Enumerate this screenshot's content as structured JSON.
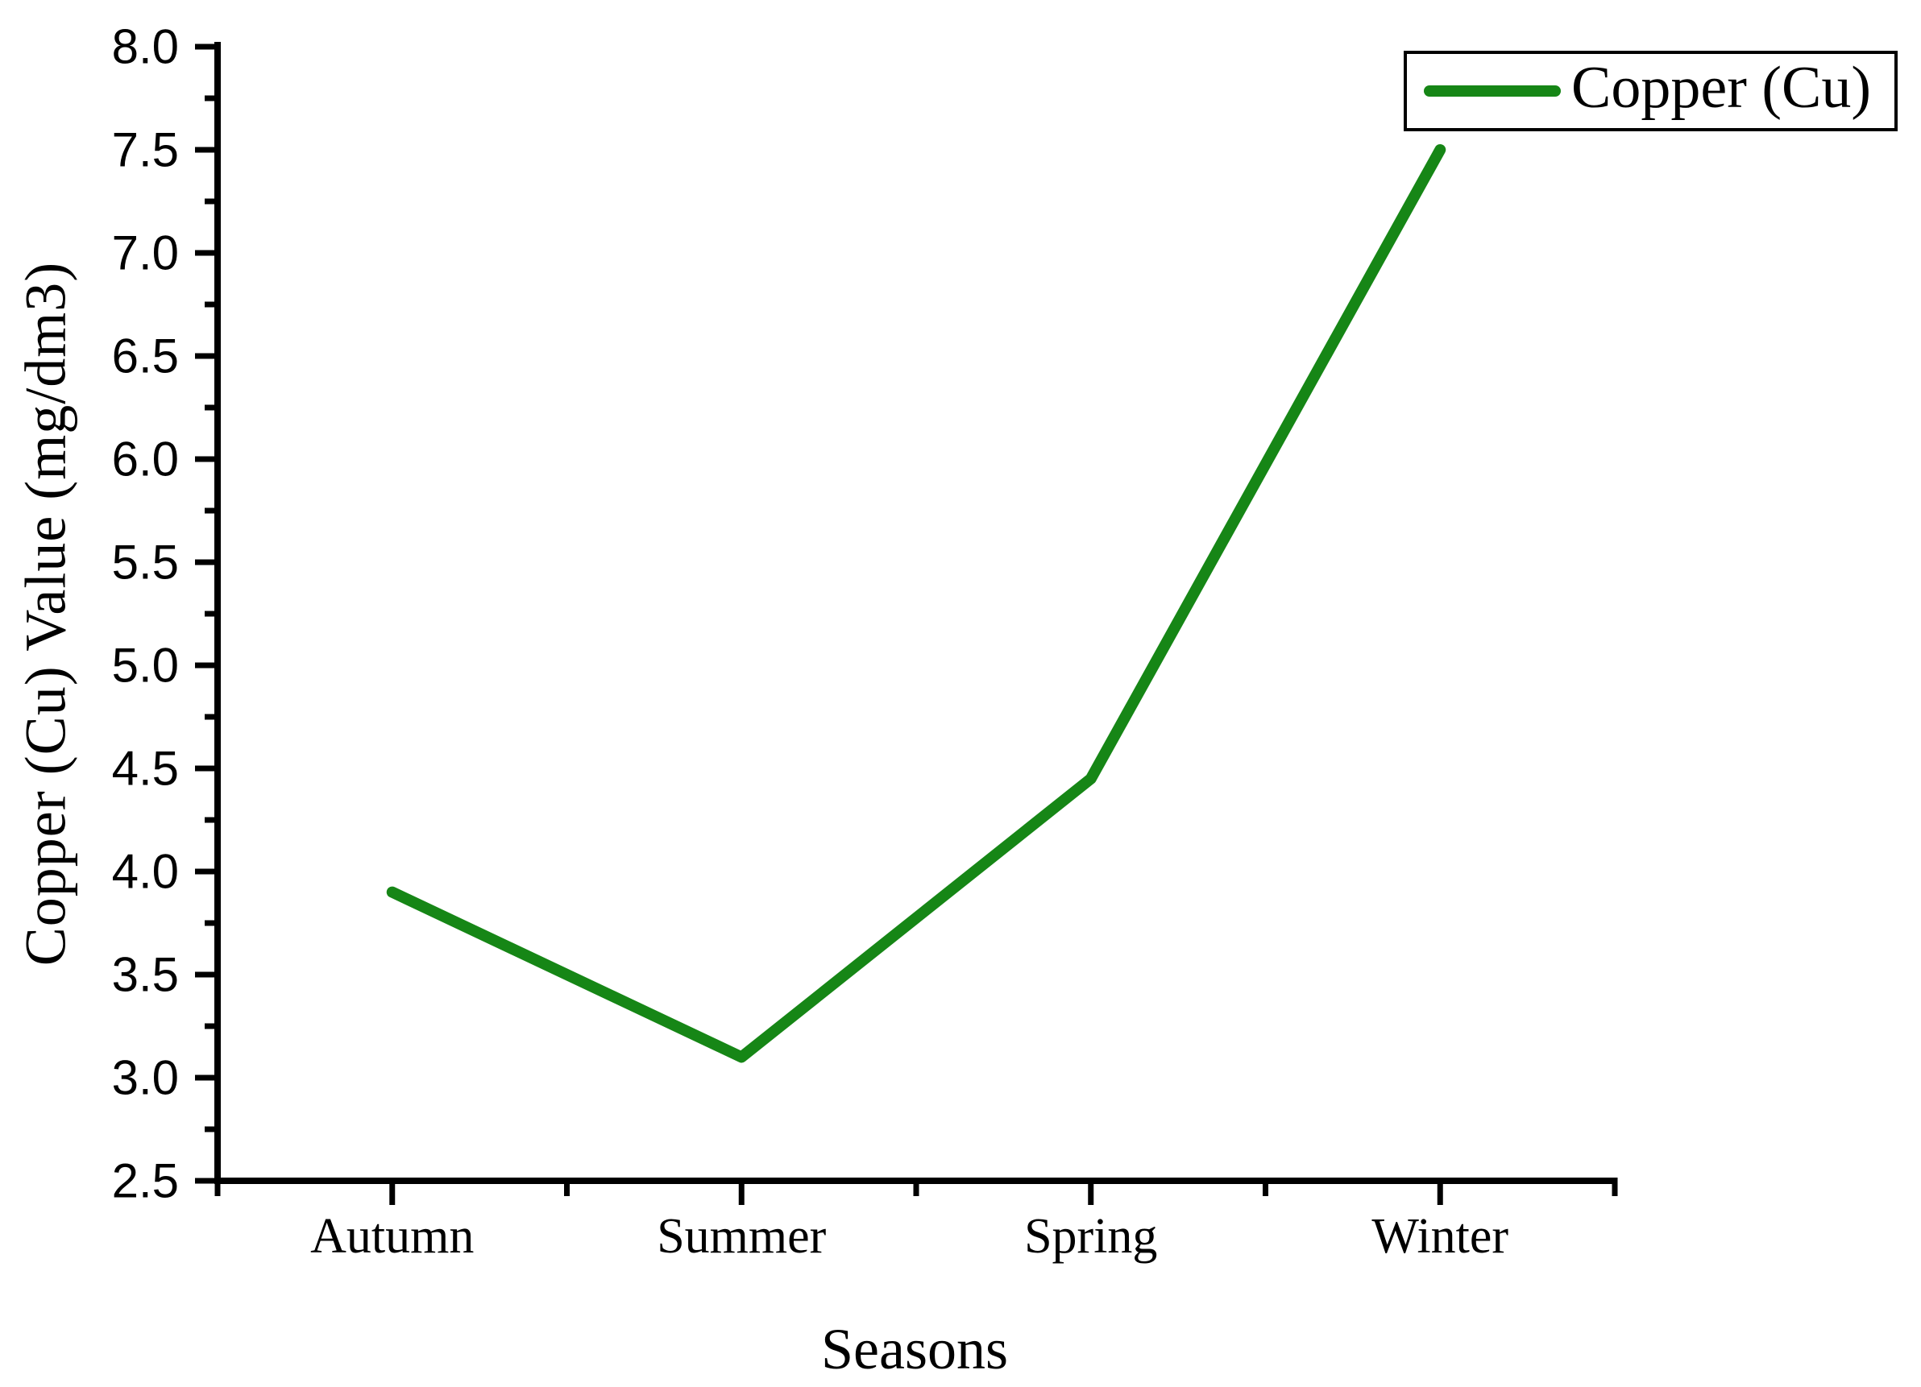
{
  "chart_data": {
    "type": "line",
    "categories": [
      "Autumn",
      "Summer",
      "Spring",
      "Winter"
    ],
    "series": [
      {
        "name": "Copper (Cu)",
        "values": [
          3.9,
          3.1,
          4.45,
          7.5
        ],
        "color": "#168616"
      }
    ],
    "xlabel": "Seasons",
    "ylabel": "Copper (Cu) Value (mg/dm3)",
    "ylim": [
      2.5,
      8.0
    ],
    "y_major_step": 0.5,
    "y_minor_step": 0.25,
    "y_tick_labels": [
      "2.5",
      "3.0",
      "3.5",
      "4.0",
      "4.5",
      "5.0",
      "5.5",
      "6.0",
      "6.5",
      "7.0",
      "7.5",
      "8.0"
    ],
    "grid": false,
    "legend_position": "top-right",
    "axis_color": "#000000",
    "background_color": "#ffffff"
  }
}
